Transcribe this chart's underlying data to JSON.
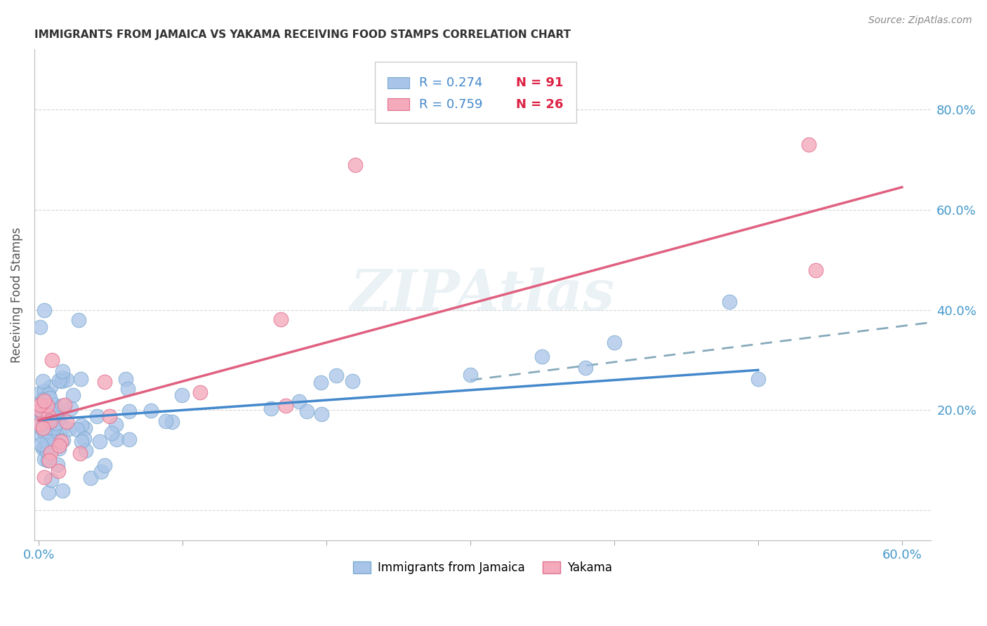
{
  "title": "IMMIGRANTS FROM JAMAICA VS YAKAMA RECEIVING FOOD STAMPS CORRELATION CHART",
  "source": "Source: ZipAtlas.com",
  "ylabel": "Receiving Food Stamps",
  "watermark": "ZIPAtlas",
  "blue_color": "#a8c4e8",
  "blue_edge_color": "#7aaad0",
  "pink_color": "#f4aabb",
  "pink_edge_color": "#e07090",
  "blue_line_color": "#4488cc",
  "pink_line_color": "#e06080",
  "dashed_line_color": "#88aabb",
  "tick_color": "#4499cc",
  "ylabel_color": "#555555",
  "title_color": "#333333",
  "source_color": "#888888",
  "grid_color": "#cccccc",
  "xlim": [
    -0.003,
    0.62
  ],
  "ylim": [
    -0.06,
    0.92
  ],
  "xticks": [
    0.0,
    0.1,
    0.2,
    0.3,
    0.4,
    0.5,
    0.6
  ],
  "xticklabels": [
    "0.0%",
    "",
    "",
    "",
    "",
    "",
    "60.0%"
  ],
  "yticks_right": [
    0.2,
    0.4,
    0.6,
    0.8
  ],
  "yticklabels_right": [
    "20.0%",
    "40.0%",
    "60.0%",
    "80.0%"
  ],
  "blue_line_x": [
    0.0,
    0.5
  ],
  "blue_line_y": [
    0.18,
    0.28
  ],
  "pink_line_x": [
    0.0,
    0.6
  ],
  "pink_line_y": [
    0.18,
    0.645
  ],
  "dashed_line_x": [
    0.3,
    0.62
  ],
  "dashed_line_y": [
    0.26,
    0.375
  ],
  "legend_r1": "R = 0.274",
  "legend_n1": "N = 91",
  "legend_r2": "R = 0.759",
  "legend_n2": "N = 26",
  "legend_text_color": "#4488cc",
  "legend_n_color": "#dd2244"
}
